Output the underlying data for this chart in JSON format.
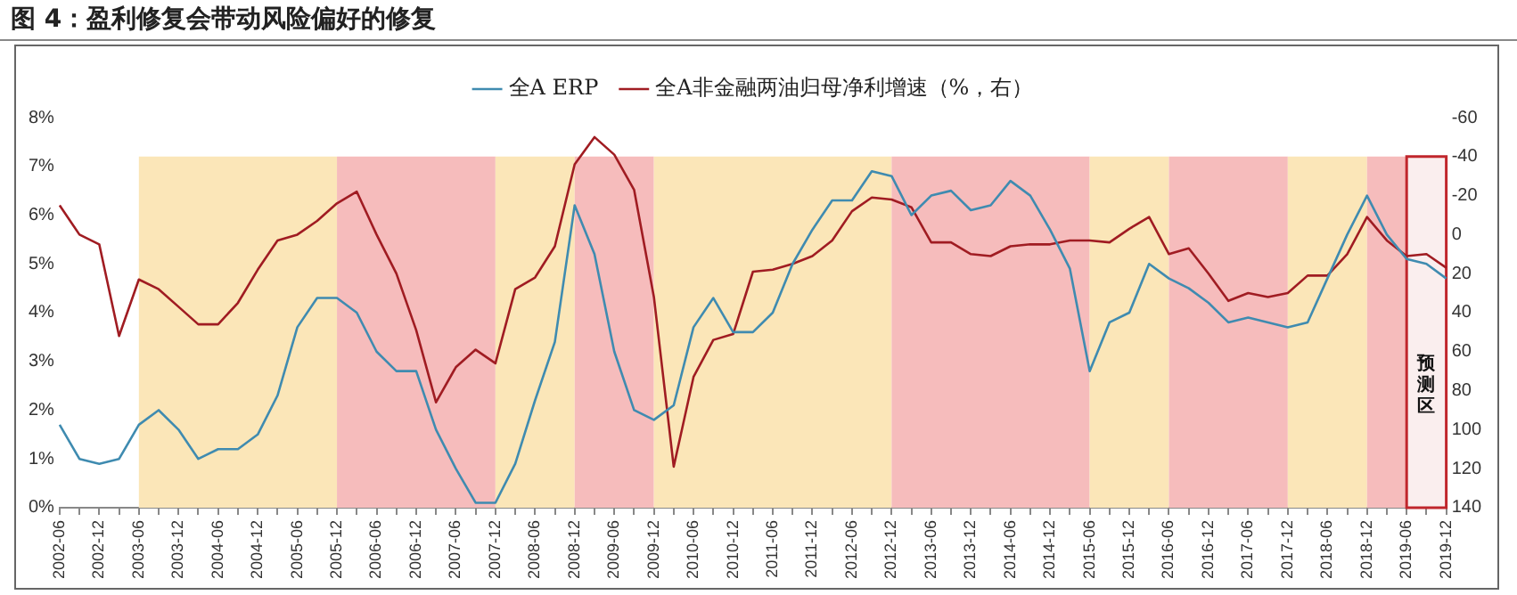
{
  "chart_data": {
    "type": "line",
    "title": "图 4：盈利修复会带动风险偏好的修复",
    "categories": [
      "2002-06",
      null,
      "2002-12",
      null,
      "2003-06",
      null,
      "2003-12",
      null,
      "2004-06",
      null,
      "2004-12",
      null,
      "2005-06",
      null,
      "2005-12",
      null,
      "2006-06",
      null,
      "2006-12",
      null,
      "2007-06",
      null,
      "2007-12",
      null,
      "2008-06",
      null,
      "2008-12",
      null,
      "2009-06",
      null,
      "2009-12",
      null,
      "2010-06",
      null,
      "2010-12",
      null,
      "2011-06",
      null,
      "2011-12",
      null,
      "2012-06",
      null,
      "2012-12",
      null,
      "2013-06",
      null,
      "2013-12",
      null,
      "2014-06",
      null,
      "2014-12",
      null,
      "2015-06",
      null,
      "2015-12",
      null,
      "2016-06",
      null,
      "2016-12",
      null,
      "2017-06",
      null,
      "2017-12",
      null,
      "2018-06",
      null,
      "2018-12",
      null,
      "2019-06",
      null,
      "2019-12"
    ],
    "series": [
      {
        "name": "全A ERP",
        "color": "#3f8bb0",
        "values": [
          1.7,
          1.0,
          0.9,
          1.0,
          1.7,
          2.0,
          1.6,
          1.0,
          1.2,
          1.2,
          1.5,
          2.3,
          3.7,
          4.3,
          4.3,
          4.0,
          3.2,
          2.8,
          2.8,
          1.6,
          0.8,
          0.1,
          0.1,
          0.9,
          2.2,
          3.4,
          6.2,
          5.2,
          3.2,
          2.0,
          1.8,
          2.1,
          3.7,
          4.3,
          3.6,
          3.6,
          4.0,
          5.0,
          5.7,
          6.3,
          6.3,
          6.9,
          6.8,
          6.0,
          6.4,
          6.5,
          6.1,
          6.2,
          6.7,
          6.4,
          5.7,
          4.9,
          2.8,
          3.8,
          4.0,
          5.0,
          4.7,
          4.5,
          4.2,
          3.8,
          3.9,
          3.8,
          3.7,
          3.8,
          4.7,
          5.6,
          6.4,
          5.6,
          5.1,
          5.0,
          4.7
        ]
      },
      {
        "name": "全A非金融两油归母净利增速（%，右）",
        "color": "#a01c22",
        "axis": "y2",
        "values": [
          -15,
          0,
          5,
          52,
          23,
          28,
          37,
          46,
          46,
          35,
          18,
          3,
          0,
          -7,
          -16,
          -22,
          0,
          20,
          49,
          86,
          68,
          59,
          66,
          28,
          22,
          6,
          -36,
          -50,
          -41,
          -23,
          32,
          119,
          73,
          54,
          51,
          19,
          18,
          15,
          11,
          3,
          -12,
          -19,
          -18,
          -14,
          4,
          4,
          10,
          11,
          6,
          5,
          5,
          3,
          3,
          4,
          -3,
          -9,
          10,
          7,
          20,
          34,
          30,
          32,
          30,
          21,
          21,
          10,
          -9,
          3,
          11,
          10,
          17
        ]
      }
    ],
    "ylim": [
      0,
      8
    ],
    "yticks": [
      {
        "value": 0,
        "label": "0%"
      },
      {
        "value": 1,
        "label": "1%"
      },
      {
        "value": 2,
        "label": "2%"
      },
      {
        "value": 3,
        "label": "3%"
      },
      {
        "value": 4,
        "label": "4%"
      },
      {
        "value": 5,
        "label": "5%"
      },
      {
        "value": 6,
        "label": "6%"
      },
      {
        "value": 7,
        "label": "7%"
      },
      {
        "value": 8,
        "label": "8%"
      }
    ],
    "y2lim": [
      140,
      -60
    ],
    "y2ticks": [
      -60,
      -40,
      -20,
      0,
      20,
      40,
      60,
      80,
      100,
      120,
      140
    ],
    "bands": [
      {
        "axis": "x",
        "from": "2003-06",
        "to": "2005-12",
        "color": "#fbe6b8"
      },
      {
        "axis": "x",
        "from": "2005-12",
        "to": "2007-12",
        "color": "#f6bcbc"
      },
      {
        "axis": "x",
        "from": "2007-12",
        "to": "2008-12",
        "color": "#fbe6b8"
      },
      {
        "axis": "x",
        "from": "2008-12",
        "to": "2009-12",
        "color": "#f6bcbc"
      },
      {
        "axis": "x",
        "from": "2009-12",
        "to": "2012-12",
        "color": "#fbe6b8"
      },
      {
        "axis": "x",
        "from": "2012-12",
        "to": "2015-06",
        "color": "#f6bcbc"
      },
      {
        "axis": "x",
        "from": "2015-06",
        "to": "2016-06",
        "color": "#fbe6b8"
      },
      {
        "axis": "x",
        "from": "2016-06",
        "to": "2017-12",
        "color": "#f6bcbc"
      },
      {
        "axis": "x",
        "from": "2017-12",
        "to": "2018-12",
        "color": "#fbe6b8"
      },
      {
        "axis": "x",
        "from": "2018-12",
        "to": "2019-06",
        "color": "#f6bcbc"
      },
      {
        "axis": "x",
        "from": "2019-06",
        "to": "2019-12",
        "color": "#c0262c",
        "label": "预测区"
      }
    ],
    "legend": "top",
    "marker": "none"
  }
}
